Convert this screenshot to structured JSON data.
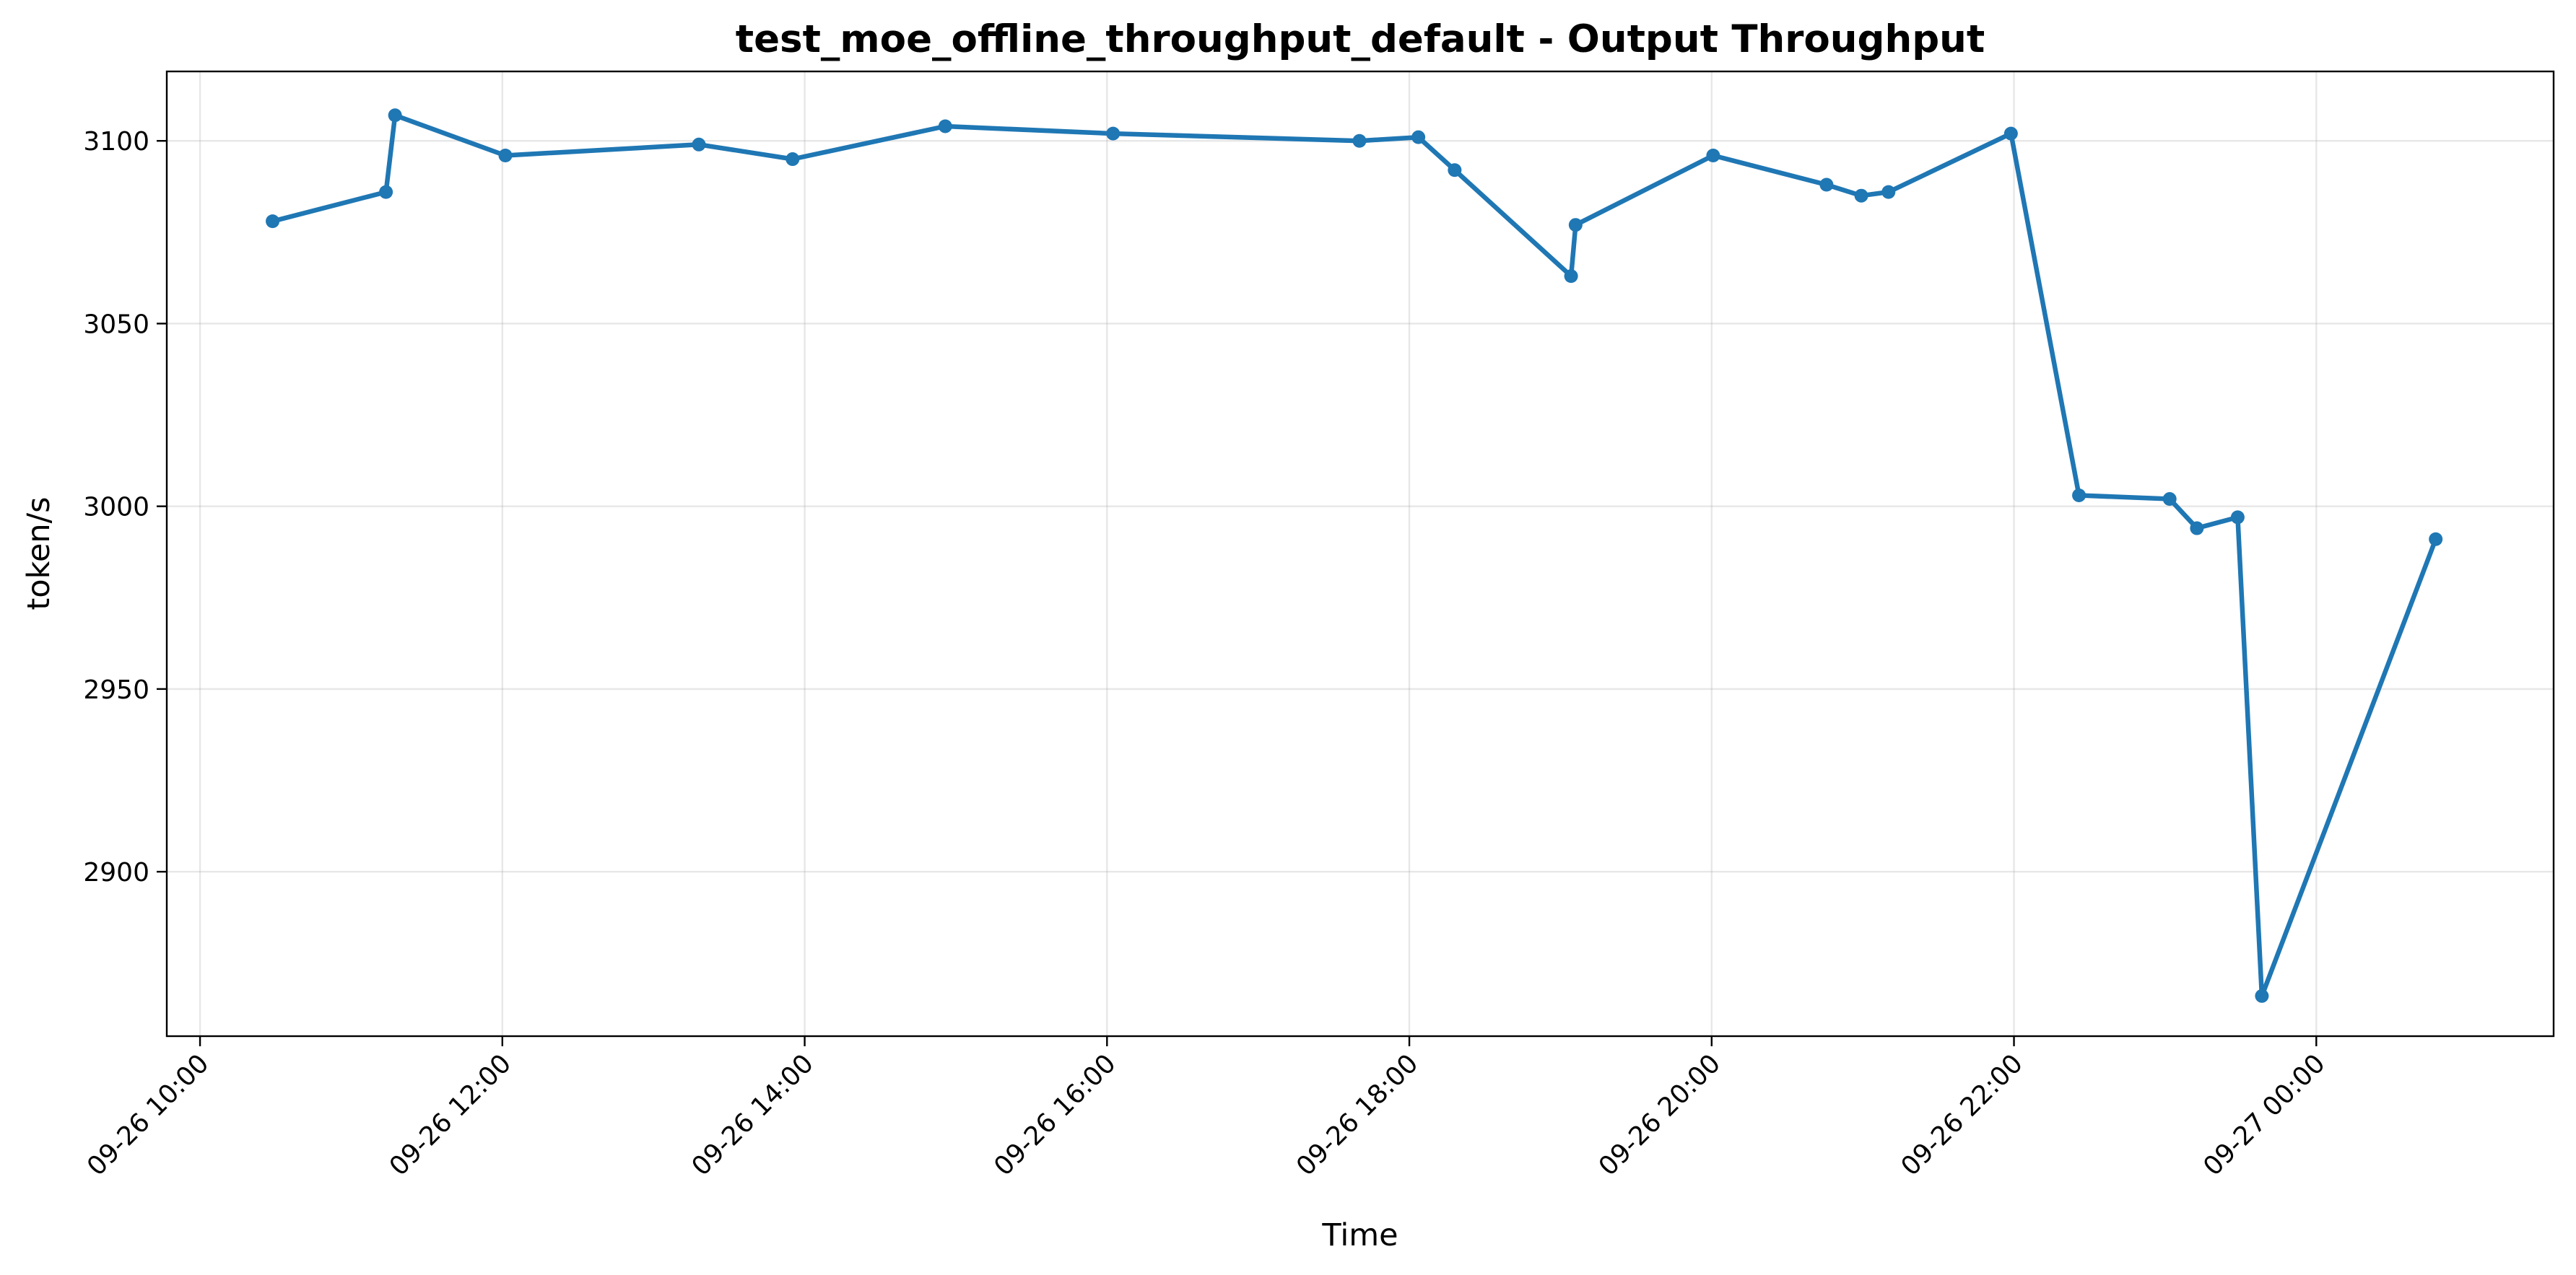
{
  "chart_data": {
    "type": "line",
    "title": "test_moe_offline_throughput_default - Output Throughput",
    "xlabel": "Time",
    "ylabel": "token/s",
    "grid": true,
    "color": "#1f77b4",
    "xlim_hours": [
      9.78,
      25.57
    ],
    "ylim": [
      2855,
      3119
    ],
    "yticks": [
      2900,
      2950,
      3000,
      3050,
      3100
    ],
    "xticks": [
      {
        "hours": 10,
        "label": "09-26 10:00"
      },
      {
        "hours": 12,
        "label": "09-26 12:00"
      },
      {
        "hours": 14,
        "label": "09-26 14:00"
      },
      {
        "hours": 16,
        "label": "09-26 16:00"
      },
      {
        "hours": 18,
        "label": "09-26 18:00"
      },
      {
        "hours": 20,
        "label": "09-26 20:00"
      },
      {
        "hours": 22,
        "label": "09-26 22:00"
      },
      {
        "hours": 24,
        "label": "09-27 00:00"
      }
    ],
    "series": [
      {
        "name": "Output Throughput",
        "x_hours": [
          10.48,
          11.23,
          11.29,
          12.02,
          13.3,
          13.92,
          14.93,
          16.04,
          17.67,
          18.06,
          18.3,
          19.07,
          19.1,
          20.01,
          20.76,
          20.99,
          21.17,
          21.98,
          22.43,
          23.03,
          23.21,
          23.48,
          23.64,
          24.79
        ],
        "values": [
          3078,
          3086,
          3107,
          3096,
          3099,
          3095,
          3104,
          3102,
          3100,
          3101,
          3092,
          3063,
          3077,
          3096,
          3088,
          3085,
          3086,
          3102,
          3003,
          3002,
          2994,
          2997,
          2866,
          2991
        ]
      }
    ]
  }
}
